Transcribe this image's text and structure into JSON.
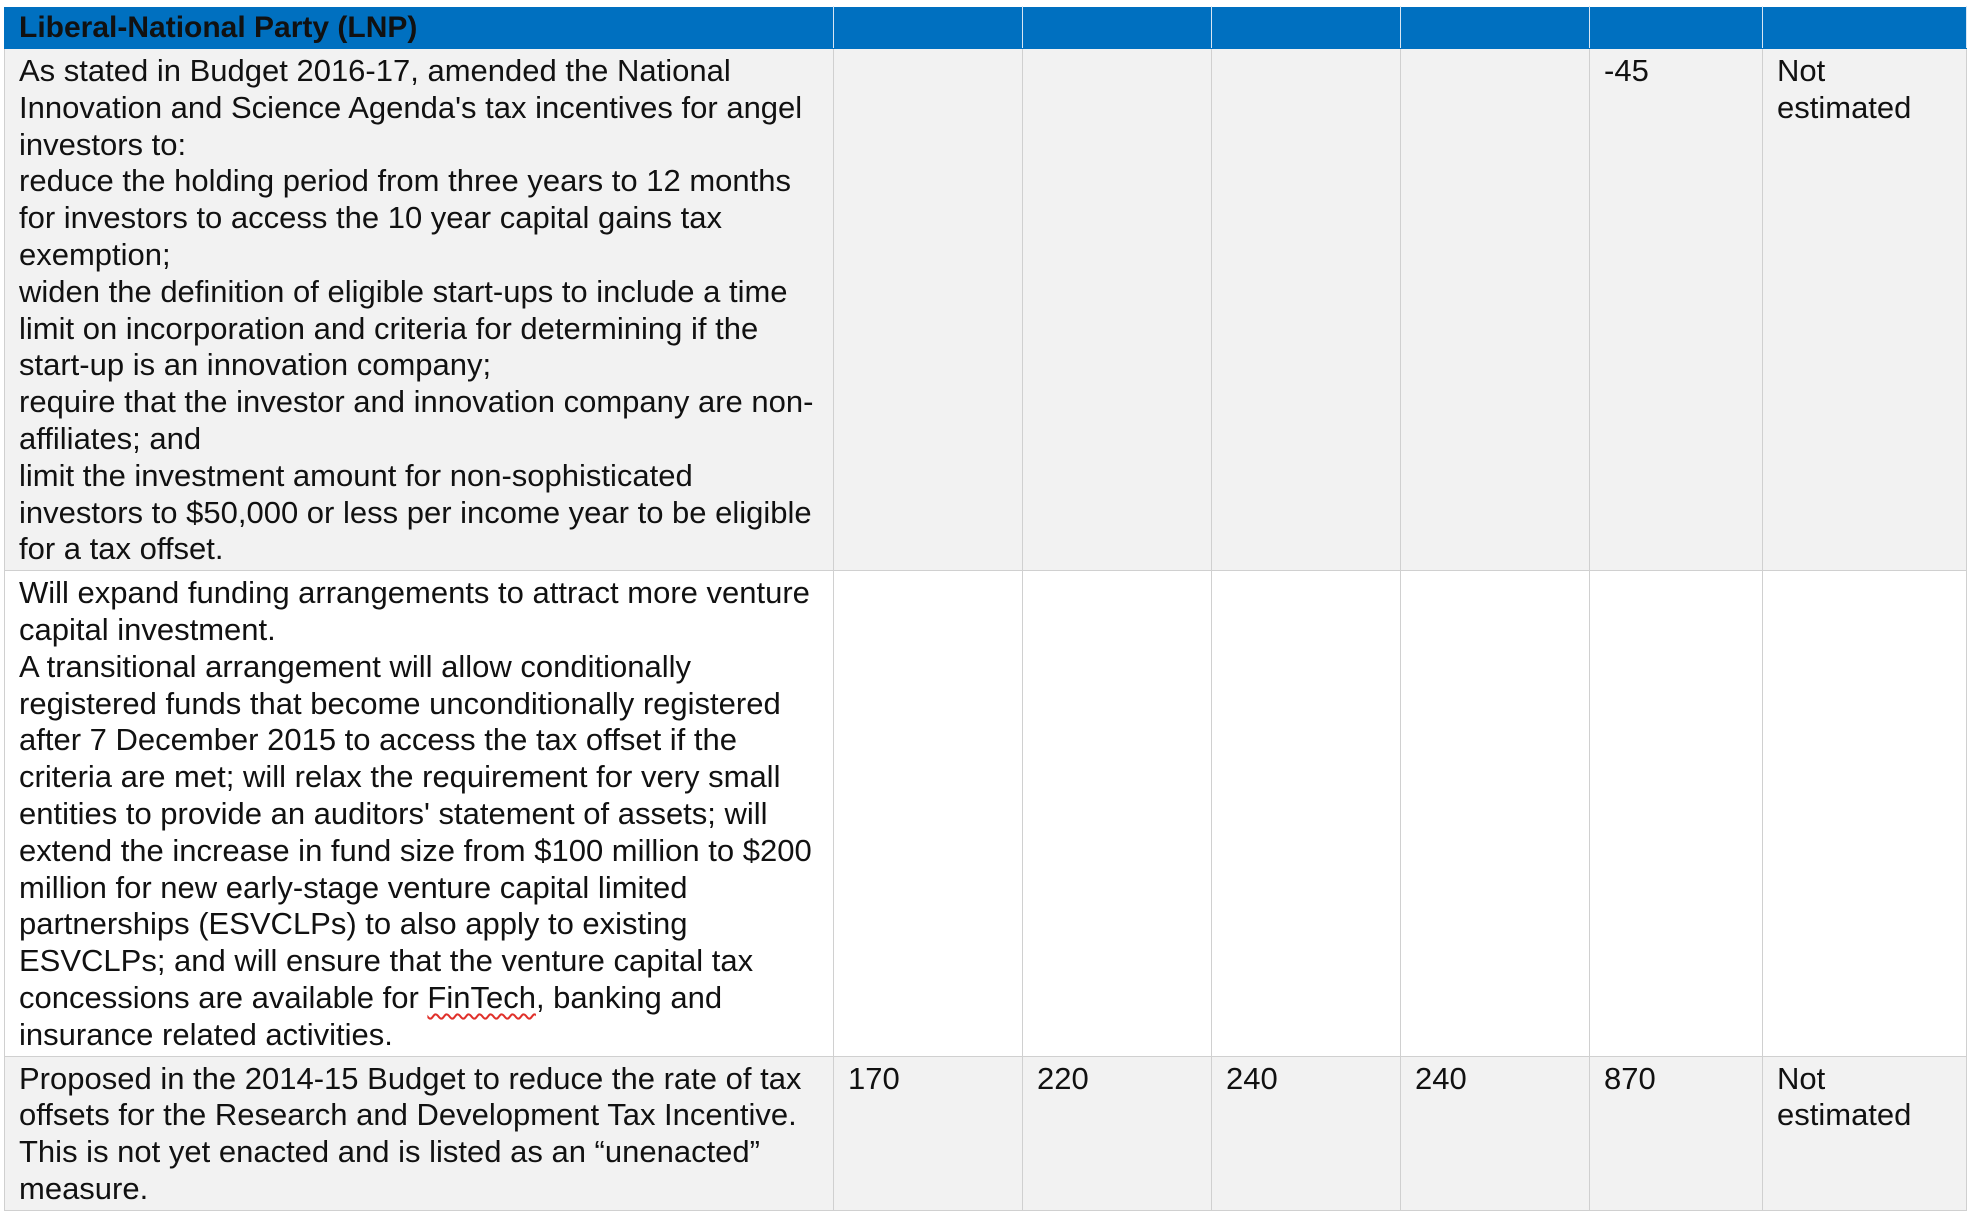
{
  "table": {
    "header": {
      "title": "Liberal-National Party (LNP)",
      "cells": [
        "",
        "",
        "",
        "",
        "",
        ""
      ]
    },
    "rows": [
      {
        "description_lines": [
          "As stated in Budget 2016-17, amended the National Innovation and Science Agenda's tax incentives for angel investors to:",
          "reduce the holding period from three years to 12 months for investors to access the 10 year capital gains tax exemption;",
          "widen the definition of eligible start-ups to include a time limit on incorporation and criteria for determining if the start-up is an innovation company;",
          "require that the investor and innovation company are non-affiliates; and",
          "limit the investment amount for non-sophisticated investors to $50,000 or less per income year to be eligible for a tax offset."
        ],
        "values": [
          "",
          "",
          "",
          "",
          "-45",
          "Not estimated"
        ]
      },
      {
        "description_lines": [
          "Will expand funding arrangements to attract more venture capital investment.",
          "A transitional arrangement will allow conditionally registered funds that become unconditionally registered after 7 December 2015 to access the tax offset if the criteria are met; will relax the requirement for very small entities to provide an auditors' statement of assets; will extend the increase in fund size from $100 million to $200 million for new early-stage venture capital limited partnerships (ESVCLPs) to also apply to existing ESVCLPs; and will ensure that the venture capital tax concessions are available for "
        ],
        "spell_flagged_word": "FinTech",
        "description_tail": ", banking and insurance related activities.",
        "values": [
          "",
          "",
          "",
          "",
          "",
          ""
        ]
      },
      {
        "description_lines": [
          "Proposed in the 2014-15 Budget to reduce the rate of tax offsets for the Research and Development Tax Incentive. This is not yet enacted and is listed as an “unenacted” measure."
        ],
        "values": [
          "170",
          "220",
          "240",
          "240",
          "870",
          "Not estimated"
        ]
      }
    ]
  }
}
